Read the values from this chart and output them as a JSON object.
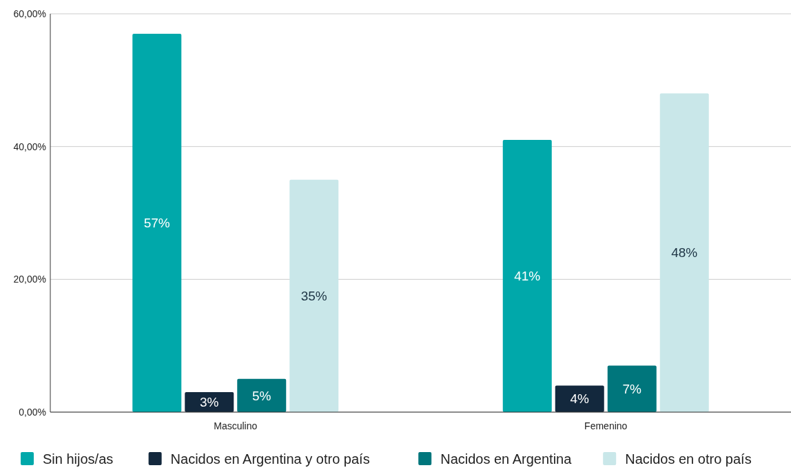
{
  "chart_data": {
    "type": "bar",
    "categories": [
      "Masculino",
      "Femenino"
    ],
    "series": [
      {
        "name": "Sin hijos/as",
        "color": "#00a8aa",
        "values": [
          57,
          41
        ]
      },
      {
        "name": "Nacidos en Argentina y otro país",
        "color": "#13283d",
        "values": [
          3,
          4
        ]
      },
      {
        "name": "Nacidos en Argentina",
        "color": "#00767c",
        "values": [
          5,
          7
        ]
      },
      {
        "name": "Nacidos en otro país",
        "color": "#c9e7e9",
        "values": [
          35,
          48
        ]
      }
    ],
    "ylim": [
      0,
      60
    ],
    "yticks": [
      {
        "value": 0,
        "label": "0,00%"
      },
      {
        "value": 20,
        "label": "20,00%"
      },
      {
        "value": 40,
        "label": "40,00%"
      },
      {
        "value": 60,
        "label": "60,00%"
      }
    ],
    "grid": "y",
    "legend": "bottom",
    "value_labels": [
      [
        "57%",
        "41%"
      ],
      [
        "3%",
        "4%"
      ],
      [
        "5%",
        "7%"
      ],
      [
        "35%",
        "48%"
      ]
    ]
  }
}
